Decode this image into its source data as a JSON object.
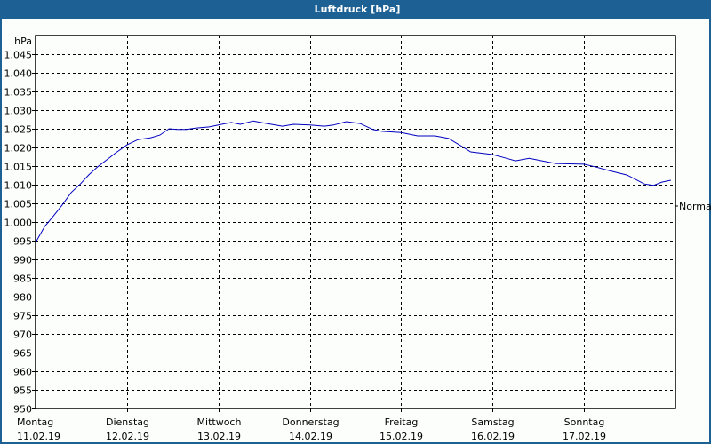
{
  "window": {
    "title": "Luftdruck [hPa]",
    "colors": {
      "titlebar": "#1d6094",
      "background": "#fcfefc",
      "line": "#0000c0",
      "grid": "#000000"
    }
  },
  "chart_data": {
    "type": "line",
    "title": "Luftdruck [hPa]",
    "xlabel": "",
    "ylabel": "hPa",
    "ylim": [
      950,
      1050
    ],
    "y_ticks": [
      "950",
      "955",
      "960",
      "965",
      "970",
      "975",
      "980",
      "985",
      "990",
      "995",
      "1.000",
      "1.005",
      "1.010",
      "1.015",
      "1.020",
      "1.025",
      "1.030",
      "1.035",
      "1.040",
      "1.045"
    ],
    "y_tick_values": [
      950,
      955,
      960,
      965,
      970,
      975,
      980,
      985,
      990,
      995,
      1000,
      1005,
      1010,
      1015,
      1020,
      1025,
      1030,
      1035,
      1040,
      1045
    ],
    "x_ticks": [
      {
        "day": "Montag",
        "date": "11.02.19"
      },
      {
        "day": "Dienstag",
        "date": "12.02.19"
      },
      {
        "day": "Mittwoch",
        "date": "13.02.19"
      },
      {
        "day": "Donnerstag",
        "date": "14.02.19"
      },
      {
        "day": "Freitag",
        "date": "15.02.19"
      },
      {
        "day": "Samstag",
        "date": "16.02.19"
      },
      {
        "day": "Sonntag",
        "date": "17.02.19"
      }
    ],
    "xlim_days": [
      0,
      7
    ],
    "grid": true,
    "grid_style": "dashed",
    "annotations": [
      {
        "text": "Normal",
        "y": 1005,
        "position": "right"
      }
    ],
    "series": [
      {
        "name": "Luftdruck",
        "color": "#0000c0",
        "x_days": [
          0.0,
          0.1,
          0.19,
          0.29,
          0.39,
          0.49,
          0.58,
          0.68,
          0.78,
          0.88,
          1.0,
          1.12,
          1.26,
          1.36,
          1.46,
          1.55,
          1.65,
          1.75,
          1.9,
          2.0,
          2.14,
          2.24,
          2.38,
          2.53,
          2.7,
          2.82,
          3.0,
          3.16,
          3.26,
          3.4,
          3.55,
          3.69,
          3.79,
          4.0,
          4.18,
          4.37,
          4.52,
          4.67,
          4.76,
          5.0,
          5.15,
          5.25,
          5.4,
          5.54,
          5.69,
          6.0,
          6.12,
          6.27,
          6.47,
          6.66,
          6.76,
          6.85,
          6.95
        ],
        "values": [
          994.5,
          998.8,
          1001.4,
          1004.5,
          1007.9,
          1010.2,
          1012.6,
          1014.8,
          1016.7,
          1018.6,
          1020.7,
          1022.1,
          1022.6,
          1023.3,
          1025.0,
          1024.8,
          1024.8,
          1025.2,
          1025.5,
          1026.0,
          1026.7,
          1026.2,
          1027.1,
          1026.4,
          1025.7,
          1026.2,
          1026.0,
          1025.7,
          1026.0,
          1026.9,
          1026.4,
          1024.8,
          1024.3,
          1024.0,
          1023.1,
          1023.1,
          1022.4,
          1020.2,
          1018.8,
          1018.1,
          1017.1,
          1016.4,
          1017.1,
          1016.4,
          1015.7,
          1015.5,
          1014.8,
          1013.8,
          1012.6,
          1010.2,
          1009.8,
          1010.7,
          1011.2
        ]
      }
    ]
  }
}
